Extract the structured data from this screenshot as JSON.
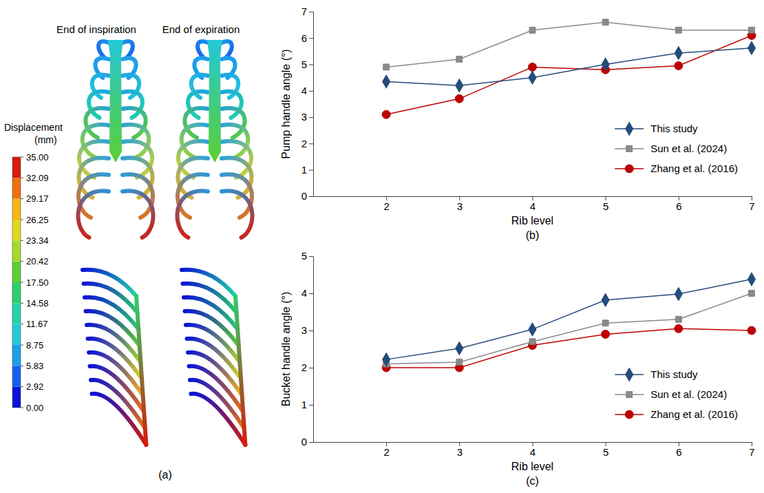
{
  "chart_data": [
    {
      "type": "contour",
      "label": "(a)",
      "titles": [
        "End of inspiration",
        "End of expiration"
      ],
      "colorbar": {
        "title": "Displacement (mm)",
        "range": [
          0,
          35
        ],
        "ticks": [
          {
            "value": 0,
            "label": "0.00"
          },
          {
            "value": 2.92,
            "label": "2.92"
          },
          {
            "value": 5.83,
            "label": "5.83"
          },
          {
            "value": 8.75,
            "label": "8.75"
          },
          {
            "value": 11.67,
            "label": "11.67"
          },
          {
            "value": 14.58,
            "label": "14.58"
          },
          {
            "value": 17.5,
            "label": "17.50"
          },
          {
            "value": 20.42,
            "label": "20.42"
          },
          {
            "value": 23.34,
            "label": "23.34"
          },
          {
            "value": 26.25,
            "label": "26.25"
          },
          {
            "value": 29.17,
            "label": "29.17"
          },
          {
            "value": 32.09,
            "label": "32.09"
          },
          {
            "value": 35,
            "label": "35.00"
          }
        ],
        "colors": [
          "#0a14d6",
          "#1560f0",
          "#1d9ee8",
          "#24c8d8",
          "#20d6a8",
          "#2ccf6a",
          "#5ccf30",
          "#a6d92a",
          "#e0d81e",
          "#f5b614",
          "#f07010",
          "#d81a0a"
        ]
      }
    },
    {
      "type": "line",
      "label": "(b)",
      "x": [
        2,
        3,
        4,
        5,
        6,
        7
      ],
      "xlim": [
        1,
        7
      ],
      "xticks": [
        2,
        3,
        4,
        5,
        6,
        7
      ],
      "ylim": [
        0,
        7
      ],
      "yticks": [
        0,
        1,
        2,
        3,
        4,
        5,
        6,
        7
      ],
      "xlabel": "Rib level",
      "ylabel": "Pump handle angle (°)",
      "legend": "lower right",
      "series": [
        {
          "name": "This study",
          "color": "#254b7d",
          "marker": "diamond",
          "values": [
            4.35,
            4.2,
            4.5,
            5.0,
            5.43,
            5.62
          ]
        },
        {
          "name": "Sun et al. (2024)",
          "color": "#8a8a8a",
          "marker": "square",
          "values": [
            4.9,
            5.2,
            6.3,
            6.6,
            6.3,
            6.3
          ]
        },
        {
          "name": "Zhang et al. (2016)",
          "color": "#c00000",
          "marker": "circle",
          "values": [
            3.1,
            3.7,
            4.9,
            4.8,
            4.95,
            6.1
          ]
        }
      ]
    },
    {
      "type": "line",
      "label": "(c)",
      "x": [
        2,
        3,
        4,
        5,
        6,
        7
      ],
      "xlim": [
        1,
        7
      ],
      "xticks": [
        2,
        3,
        4,
        5,
        6,
        7
      ],
      "ylim": [
        0,
        5
      ],
      "yticks": [
        0,
        1,
        2,
        3,
        4,
        5
      ],
      "xlabel": "Rib level",
      "ylabel": "Bucket handle angle (°)",
      "legend": "lower right",
      "series": [
        {
          "name": "This study",
          "color": "#254b7d",
          "marker": "diamond",
          "values": [
            2.22,
            2.52,
            3.03,
            3.82,
            3.98,
            4.38
          ]
        },
        {
          "name": "Sun et al. (2024)",
          "color": "#8a8a8a",
          "marker": "square",
          "values": [
            2.1,
            2.15,
            2.7,
            3.2,
            3.3,
            4.0
          ]
        },
        {
          "name": "Zhang et al. (2016)",
          "color": "#c00000",
          "marker": "circle",
          "values": [
            2.0,
            2.0,
            2.6,
            2.9,
            3.05,
            3.0
          ]
        }
      ]
    }
  ]
}
